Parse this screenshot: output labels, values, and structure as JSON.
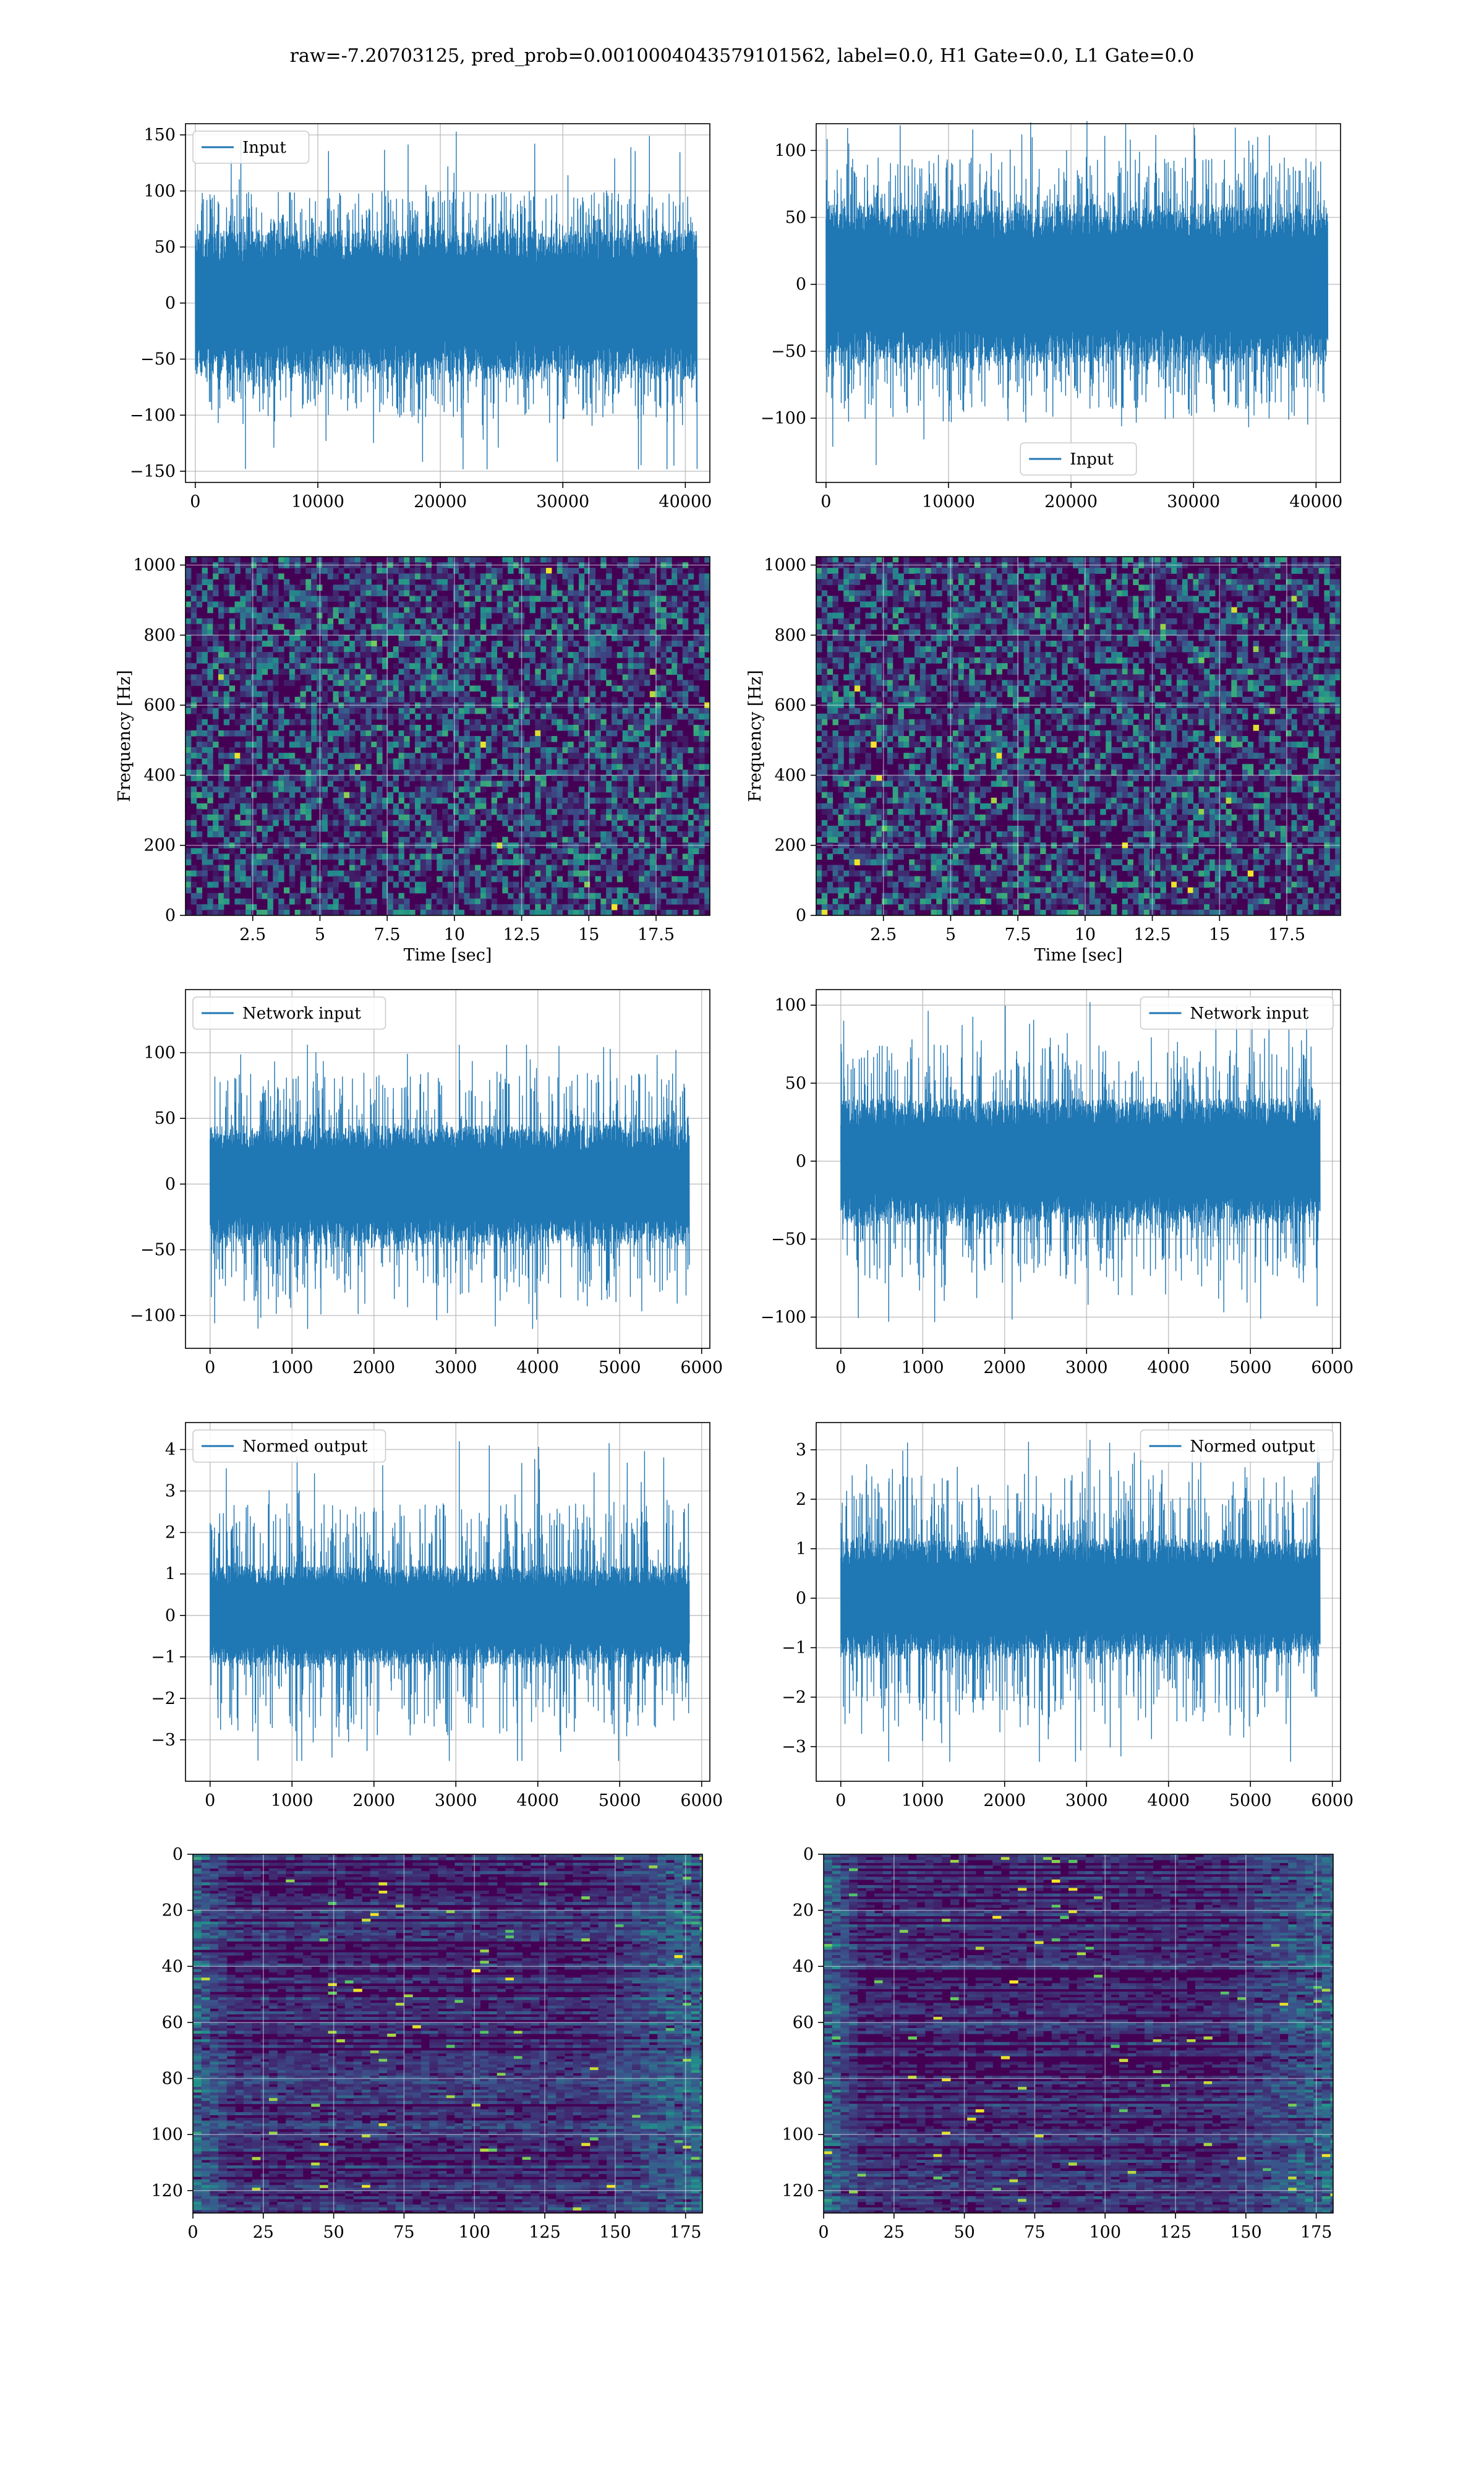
{
  "figure": {
    "suptitle": "raw=-7.20703125, pred_prob=0.0010004043579101562, label=0.0, H1 Gate=0.0, L1 Gate=0.0"
  },
  "colors": {
    "line": "#1f77b4",
    "grid": "#b0b0b0",
    "viridis_dark": "#440154",
    "viridis_mid": "#21918c",
    "viridis_bright": "#fde725"
  },
  "chart_data": [
    {
      "id": "input-h1",
      "type": "line",
      "legend": "Input",
      "legend_loc": "upper-left",
      "xlim": [
        -800,
        42000
      ],
      "ylim": [
        -160,
        160
      ],
      "xticks": [
        0,
        10000,
        20000,
        30000,
        40000
      ],
      "yticks": [
        -150,
        -100,
        -50,
        0,
        50,
        100,
        150
      ],
      "x_range": [
        0,
        40960
      ],
      "envelope": {
        "core": [
          -65,
          65
        ],
        "spikes": [
          -100,
          100
        ],
        "max": 153,
        "min": -148
      },
      "grid": true
    },
    {
      "id": "input-l1",
      "type": "line",
      "legend": "Input",
      "legend_loc": "lower-center",
      "xlim": [
        -800,
        42000
      ],
      "ylim": [
        -148,
        120
      ],
      "xticks": [
        0,
        10000,
        20000,
        30000,
        40000
      ],
      "yticks": [
        -100,
        -50,
        0,
        50,
        100
      ],
      "x_range": [
        0,
        40960
      ],
      "envelope": {
        "core": [
          -60,
          60
        ],
        "spikes": [
          -95,
          95
        ],
        "max": 122,
        "min": -135
      },
      "grid": true
    },
    {
      "id": "spec-h1",
      "type": "heatmap",
      "xlabel": "Time [sec]",
      "ylabel": "Frequency [Hz]",
      "xlim": [
        0,
        19.5
      ],
      "ylim": [
        0,
        1024
      ],
      "xticks": [
        2.5,
        5.0,
        7.5,
        10.0,
        12.5,
        15.0,
        17.5
      ],
      "yticks": [
        0,
        200,
        400,
        600,
        800,
        1000
      ],
      "colormap": "viridis",
      "grid": true
    },
    {
      "id": "spec-l1",
      "type": "heatmap",
      "xlabel": "Time [sec]",
      "ylabel": "Frequency [Hz]",
      "xlim": [
        0,
        19.5
      ],
      "ylim": [
        0,
        1024
      ],
      "xticks": [
        2.5,
        5.0,
        7.5,
        10.0,
        12.5,
        15.0,
        17.5
      ],
      "yticks": [
        0,
        200,
        400,
        600,
        800,
        1000
      ],
      "colormap": "viridis",
      "grid": true
    },
    {
      "id": "net-h1",
      "type": "line",
      "legend": "Network input",
      "legend_loc": "upper-left",
      "xlim": [
        -300,
        6100
      ],
      "ylim": [
        -125,
        148
      ],
      "xticks": [
        0,
        1000,
        2000,
        3000,
        4000,
        5000,
        6000
      ],
      "yticks": [
        -100,
        -50,
        0,
        50,
        100
      ],
      "x_range": [
        0,
        5850
      ],
      "envelope": {
        "core": [
          -45,
          45
        ],
        "spikes": [
          -85,
          85
        ],
        "max": 106,
        "min": -110
      },
      "grid": true
    },
    {
      "id": "net-l1",
      "type": "line",
      "legend": "Network input",
      "legend_loc": "upper-right",
      "xlim": [
        -300,
        6100
      ],
      "ylim": [
        -120,
        110
      ],
      "xticks": [
        0,
        1000,
        2000,
        3000,
        4000,
        5000,
        6000
      ],
      "yticks": [
        -100,
        -50,
        0,
        50,
        100
      ],
      "x_range": [
        0,
        5850
      ],
      "envelope": {
        "core": [
          -40,
          40
        ],
        "spikes": [
          -75,
          75
        ],
        "max": 102,
        "min": -103
      },
      "grid": true
    },
    {
      "id": "norm-h1",
      "type": "line",
      "legend": "Normed output",
      "legend_loc": "upper-left",
      "xlim": [
        -300,
        6100
      ],
      "ylim": [
        -4,
        4.65
      ],
      "xticks": [
        0,
        1000,
        2000,
        3000,
        4000,
        5000,
        6000
      ],
      "yticks": [
        -3,
        -2,
        -1,
        0,
        1,
        2,
        3,
        4
      ],
      "x_range": [
        0,
        5850
      ],
      "envelope": {
        "core": [
          -1.2,
          1.2
        ],
        "spikes": [
          -2.7,
          2.7
        ],
        "max": 4.2,
        "min": -3.5
      },
      "grid": true
    },
    {
      "id": "norm-l1",
      "type": "line",
      "legend": "Normed output",
      "legend_loc": "upper-right",
      "xlim": [
        -300,
        6100
      ],
      "ylim": [
        -3.7,
        3.55
      ],
      "xticks": [
        0,
        1000,
        2000,
        3000,
        4000,
        5000,
        6000
      ],
      "yticks": [
        -3,
        -2,
        -1,
        0,
        1,
        2,
        3
      ],
      "x_range": [
        0,
        5850
      ],
      "envelope": {
        "core": [
          -1.2,
          1.2
        ],
        "spikes": [
          -2.5,
          2.5
        ],
        "max": 3.2,
        "min": -3.3
      },
      "grid": true
    },
    {
      "id": "feat-h1",
      "type": "heatmap",
      "xlim": [
        0,
        181
      ],
      "ylim": [
        128,
        0
      ],
      "xticks": [
        0,
        25,
        50,
        75,
        100,
        125,
        150,
        175
      ],
      "yticks": [
        0,
        20,
        40,
        60,
        80,
        100,
        120
      ],
      "colormap": "viridis",
      "grid": true
    },
    {
      "id": "feat-l1",
      "type": "heatmap",
      "xlim": [
        0,
        181
      ],
      "ylim": [
        128,
        0
      ],
      "xticks": [
        0,
        25,
        50,
        75,
        100,
        125,
        150,
        175
      ],
      "yticks": [
        0,
        20,
        40,
        60,
        80,
        100,
        120
      ],
      "colormap": "viridis",
      "grid": true
    }
  ]
}
